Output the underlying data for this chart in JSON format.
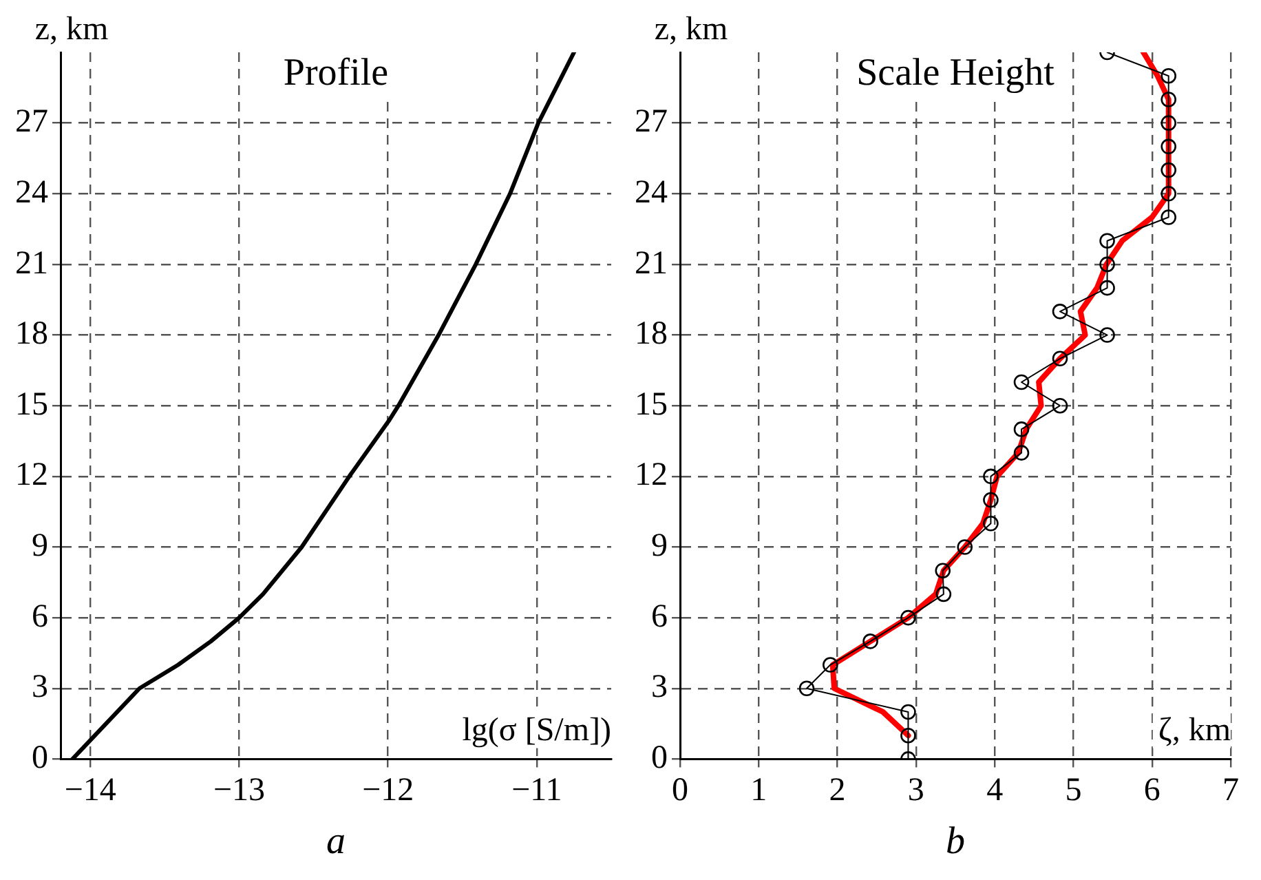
{
  "chart_data": [
    {
      "type": "line",
      "title": "Profile",
      "xlabel": "lg(σ [S/m])",
      "ylabel": "z, km",
      "annotations": [
        "a"
      ],
      "xlim": [
        -14.2,
        -10.5
      ],
      "xticks": [
        -14,
        -13,
        -12,
        -11
      ],
      "ylim": [
        0,
        30
      ],
      "yticks": [
        0,
        3,
        6,
        9,
        12,
        15,
        18,
        21,
        24,
        27
      ],
      "grid": true,
      "legend": false,
      "line_style": "solid",
      "series": [
        {
          "color": "#000000",
          "marker": "none",
          "x": [
            -14.12,
            -13.67,
            -13.41,
            -13.19,
            -13.0,
            -12.84,
            -12.58,
            -12.26,
            -11.99,
            -11.93,
            -11.66,
            -11.41,
            -11.18,
            -10.99,
            -10.75
          ],
          "values": [
            0,
            3,
            4,
            5,
            6,
            7,
            9,
            12,
            14.4,
            15,
            18,
            21,
            24,
            27,
            30
          ]
        }
      ]
    },
    {
      "type": "line",
      "title": "Scale Height",
      "xlabel": "ζ, km",
      "ylabel": "z, km",
      "annotations": [
        "b"
      ],
      "xlim": [
        0,
        7
      ],
      "xticks": [
        0,
        1,
        2,
        3,
        4,
        5,
        6,
        7
      ],
      "ylim": [
        0,
        30
      ],
      "yticks": [
        0,
        3,
        6,
        9,
        12,
        15,
        18,
        21,
        24,
        27
      ],
      "grid": true,
      "legend": false,
      "line_style": "solid",
      "series": [
        {
          "color": "#000000",
          "marker": "circle",
          "x": [
            2.9,
            2.9,
            2.9,
            1.61,
            1.91,
            2.42,
            2.9,
            3.35,
            3.34,
            3.62,
            3.95,
            3.95,
            3.95,
            4.34,
            4.34,
            4.83,
            4.34,
            4.83,
            5.43,
            4.83,
            5.43,
            5.43,
            5.43,
            6.21,
            6.21,
            6.21,
            6.21,
            6.21,
            6.21,
            6.21,
            5.43
          ],
          "values": [
            0,
            1,
            2,
            3,
            4,
            5,
            6,
            7,
            8,
            9,
            10,
            11,
            12,
            13,
            14,
            15,
            16,
            17,
            18,
            19,
            20,
            21,
            22,
            23,
            24,
            25,
            26,
            27,
            28,
            29,
            30
          ]
        },
        {
          "color": "#ff0000",
          "marker": "none",
          "x": [
            2.9,
            2.58,
            1.96,
            1.94,
            2.42,
            2.9,
            3.25,
            3.35,
            3.62,
            3.85,
            3.95,
            4.03,
            4.3,
            4.4,
            4.59,
            4.56,
            4.83,
            5.15,
            5.09,
            5.3,
            5.42,
            5.62,
            6.0,
            6.21,
            6.21,
            6.07,
            5.89
          ],
          "values": [
            1,
            2,
            3,
            4,
            5,
            6,
            7,
            8,
            9,
            10,
            11,
            12,
            13,
            14,
            15,
            16,
            17,
            18,
            19,
            20,
            21,
            22,
            23,
            24,
            28,
            29,
            30
          ]
        }
      ]
    }
  ]
}
